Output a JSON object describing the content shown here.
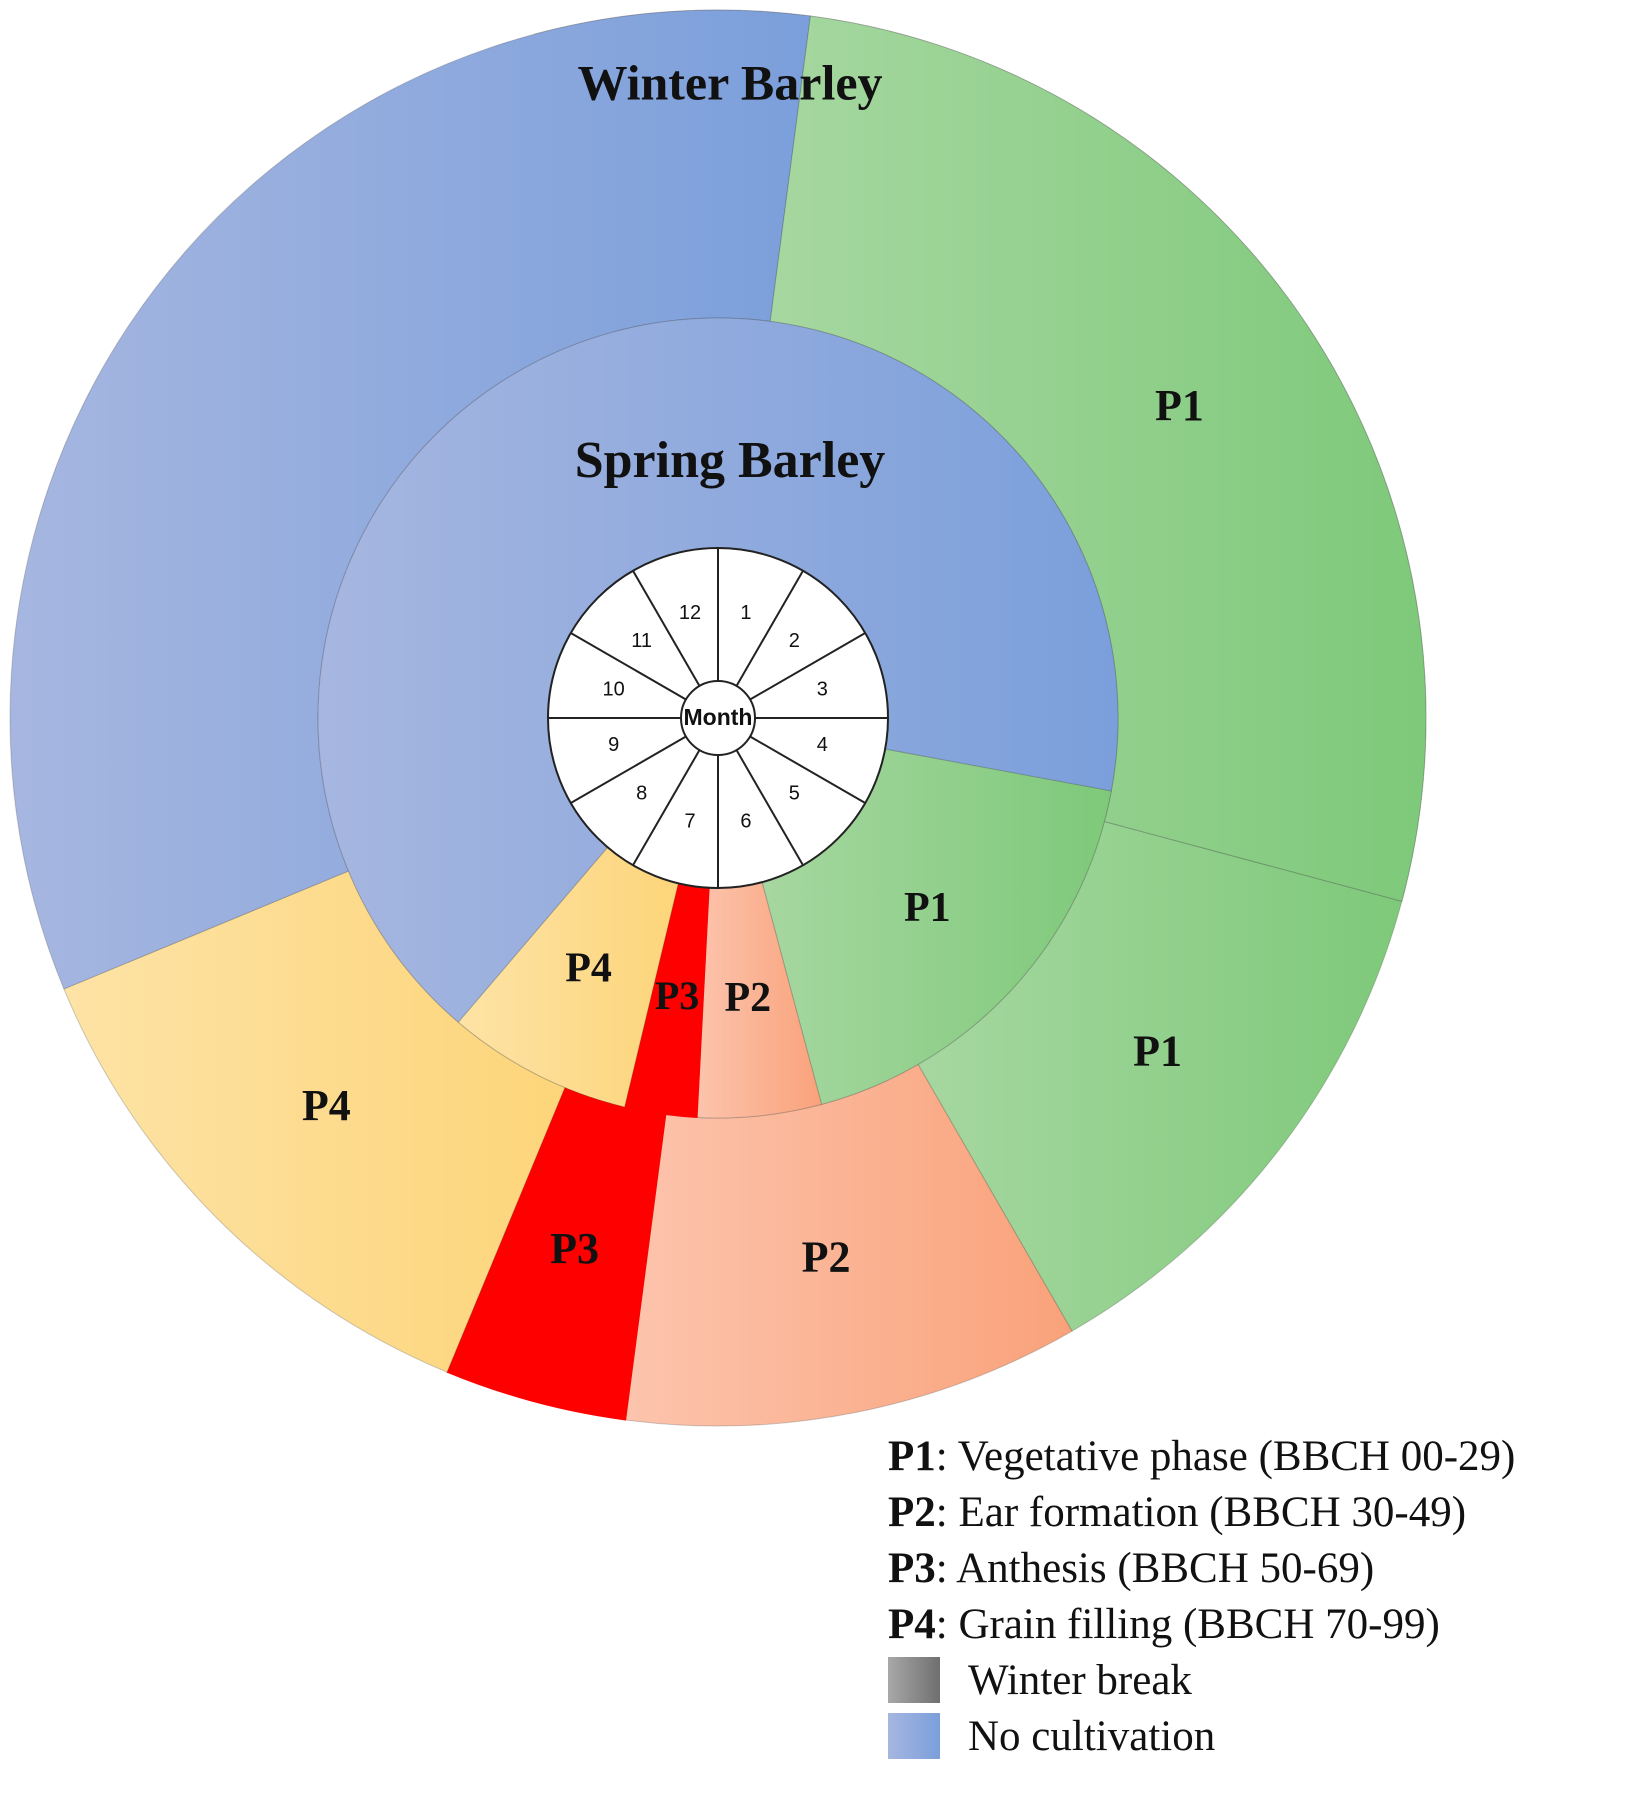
{
  "chart_data": {
    "type": "donut",
    "center_label": "Month",
    "months": [
      "1",
      "2",
      "3",
      "4",
      "5",
      "6",
      "7",
      "8",
      "9",
      "10",
      "11",
      "12"
    ],
    "rings": [
      {
        "name": "Winter Barley",
        "segments": [
          {
            "label": "",
            "category": "winter_break",
            "start_month": 12.0,
            "end_month": 4.0
          },
          {
            "label": "P1",
            "category": "P1",
            "start_month": 4.0,
            "end_month": 5.5
          },
          {
            "label": "P2",
            "category": "P2",
            "start_month": 5.5,
            "end_month": 6.75
          },
          {
            "label": "P3",
            "category": "P3",
            "start_month": 6.75,
            "end_month": 7.25
          },
          {
            "label": "P4",
            "category": "P4",
            "start_month": 7.25,
            "end_month": 8.75
          },
          {
            "label": "",
            "category": "no_cultivation",
            "start_month": 8.75,
            "end_month": 12.75
          },
          {
            "label": "P1",
            "category": "P1",
            "start_month": 12.75,
            "end_month": 16.0
          }
        ]
      },
      {
        "name": "Spring Barley",
        "segments": [
          {
            "label": "P1",
            "category": "P1",
            "start_month": 3.85,
            "end_month": 6.0
          },
          {
            "label": "P2",
            "category": "P2",
            "start_month": 6.0,
            "end_month": 6.6
          },
          {
            "label": "P3",
            "category": "P3",
            "start_month": 6.6,
            "end_month": 6.95
          },
          {
            "label": "P4",
            "category": "P4",
            "start_month": 6.95,
            "end_month": 7.85
          },
          {
            "label": "",
            "category": "no_cultivation",
            "start_month": 7.85,
            "end_month": 15.85
          }
        ]
      }
    ],
    "legend": [
      {
        "key": "P1",
        "text": ": Vegetative phase (BBCH 00-29)"
      },
      {
        "key": "P2",
        "text": ": Ear formation (BBCH 30-49)"
      },
      {
        "key": "P3",
        "text": ": Anthesis (BBCH 50-69)"
      },
      {
        "key": "P4",
        "text": ": Grain filling (BBCH 70-99)"
      },
      {
        "key": "",
        "text": "Winter break",
        "swatch": "winter_break"
      },
      {
        "key": "",
        "text": "No cultivation",
        "swatch": "no_cultivation"
      }
    ],
    "colors": {
      "P1": [
        "#a6d7a0",
        "#7ec97a"
      ],
      "P2": [
        "#fcc4ad",
        "#f9a27a"
      ],
      "P3": [
        "#ff0000",
        "#ff0000"
      ],
      "P4": [
        "#fde3a6",
        "#fdd57a"
      ],
      "winter_break": [
        "#a8a8a8",
        "#6f6f6f"
      ],
      "no_cultivation": [
        "#a6b6e0",
        "#7b9fdb"
      ]
    }
  }
}
